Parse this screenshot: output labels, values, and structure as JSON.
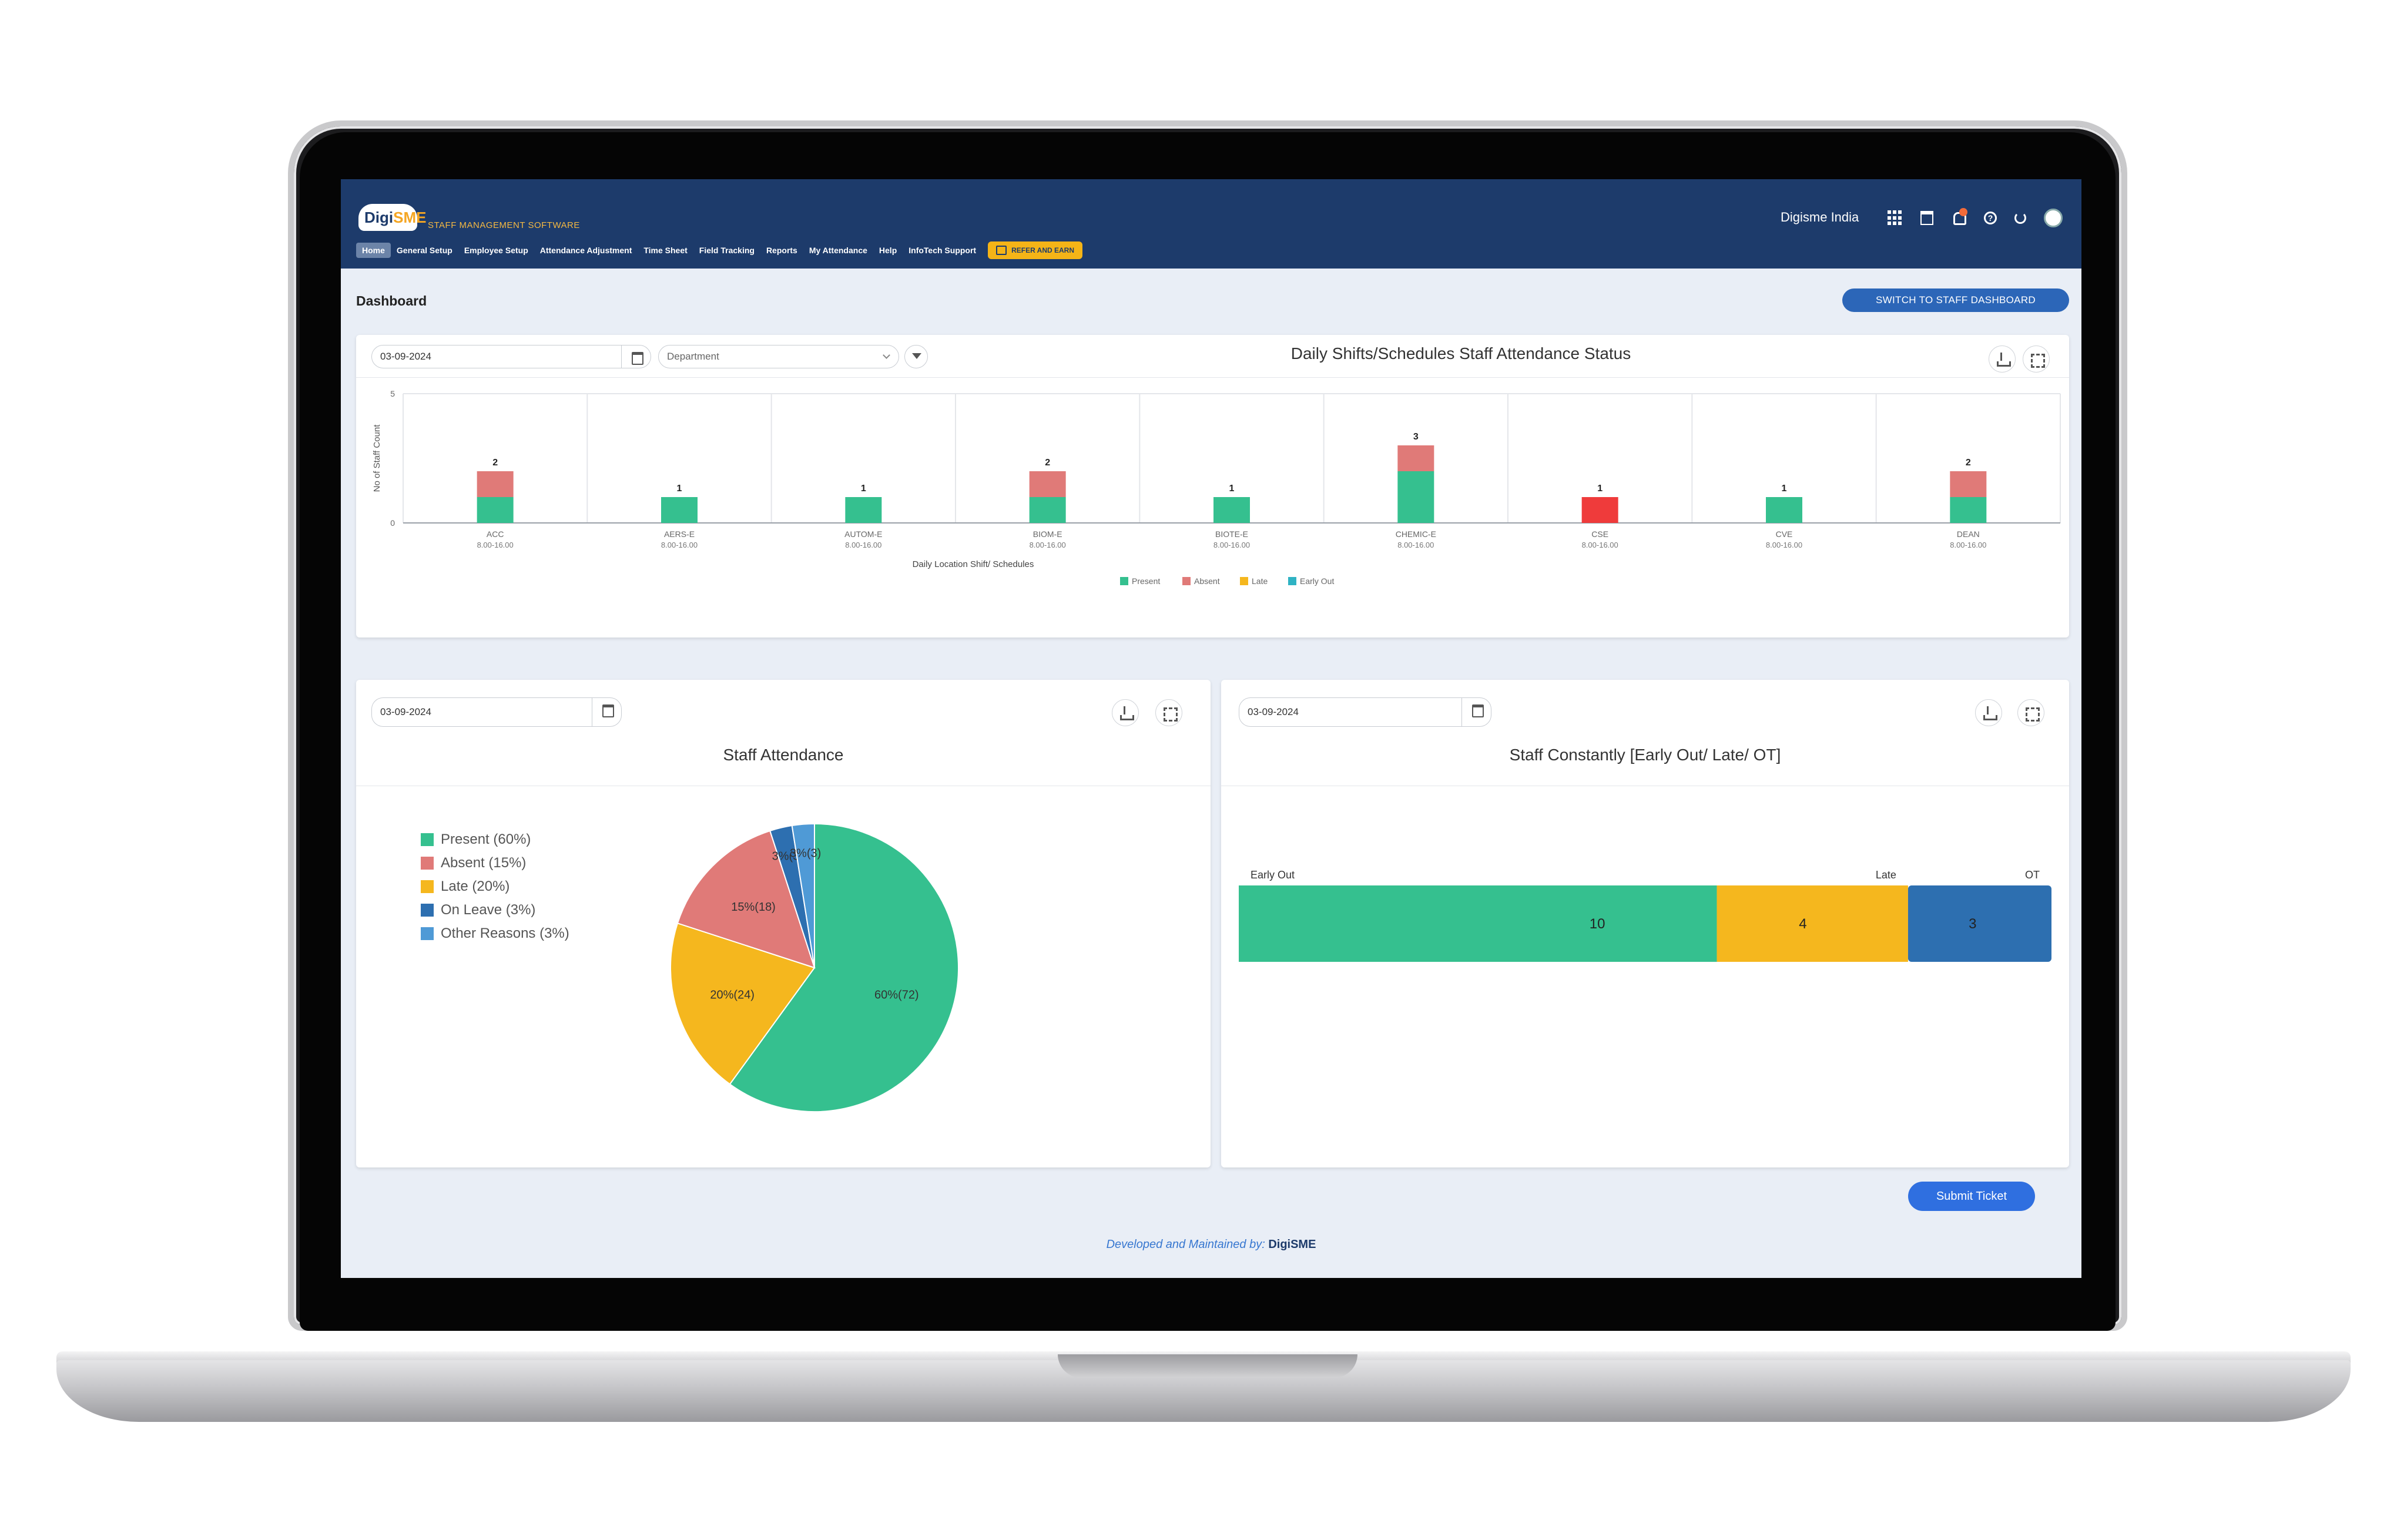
{
  "header": {
    "subtitle": "STAFF MANAGEMENT SOFTWARE",
    "logo": {
      "part1": "Digi",
      "part2": "SME"
    },
    "org_name": "Digisme India",
    "nav": [
      "Home",
      "General Setup",
      "Employee Setup",
      "Attendance Adjustment",
      "Time Sheet",
      "Field Tracking",
      "Reports",
      "My Attendance",
      "Help",
      "InfoTech Support"
    ],
    "refer_label": "REFER AND EARN",
    "help_glyph": "?"
  },
  "dashboard": {
    "title": "Dashboard",
    "switch_label": "SWITCH TO STAFF DASHBOARD"
  },
  "shift_card": {
    "date": "03-09-2024",
    "department_placeholder": "Department",
    "title": "Daily Shifts/Schedules Staff Attendance Status"
  },
  "attendance_card": {
    "date": "03-09-2024",
    "title": "Staff Attendance"
  },
  "constancy_card": {
    "date": "03-09-2024",
    "title": "Staff Constantly [Early Out/ Late/ OT]"
  },
  "submit_label": "Submit Ticket",
  "footer": {
    "text": "Developed and Maintained by:",
    "brand": "DigiSME"
  },
  "colors": {
    "present": "#35c08f",
    "absent": "#e07a78",
    "late": "#f5b71e",
    "early_out": "#2fb3c4",
    "on_leave": "#2d6fb0",
    "other": "#4f9ad6",
    "cse_absent": "#ef3b3b",
    "header": "#1d3b6b"
  },
  "chart_data": [
    {
      "type": "bar",
      "stacked": true,
      "categories": [
        {
          "name": "ACC",
          "time": "8.00-16.00"
        },
        {
          "name": "AERS-E",
          "time": "8.00-16.00"
        },
        {
          "name": "AUTOM-E",
          "time": "8.00-16.00"
        },
        {
          "name": "BIOM-E",
          "time": "8.00-16.00"
        },
        {
          "name": "BIOTE-E",
          "time": "8.00-16.00"
        },
        {
          "name": "CHEMIC-E",
          "time": "8.00-16.00"
        },
        {
          "name": "CSE",
          "time": "8.00-16.00"
        },
        {
          "name": "CVE",
          "time": "8.00-16.00"
        },
        {
          "name": "DEAN",
          "time": "8.00-16.00"
        }
      ],
      "series": [
        {
          "name": "Present",
          "values": [
            1,
            1,
            1,
            1,
            1,
            2,
            0,
            1,
            1
          ]
        },
        {
          "name": "Absent",
          "values": [
            1,
            0,
            0,
            1,
            0,
            1,
            1,
            0,
            1
          ]
        },
        {
          "name": "Late",
          "values": [
            0,
            0,
            0,
            0,
            0,
            0,
            0,
            0,
            0
          ]
        },
        {
          "name": "Early Out",
          "values": [
            0,
            0,
            0,
            0,
            0,
            0,
            0,
            0,
            0
          ]
        }
      ],
      "totals": [
        2,
        1,
        1,
        2,
        1,
        3,
        1,
        1,
        2
      ],
      "xlabel": "Daily Location Shift/ Schedules",
      "ylabel": "No of Staff Count",
      "ylim": [
        0,
        5
      ],
      "yticks": [
        "0",
        "5"
      ],
      "legend": "bottom",
      "grid": true
    },
    {
      "type": "pie",
      "slices": [
        {
          "name": "Present",
          "legend_label": "Present (60%)",
          "value": 72,
          "label": "60%(72)"
        },
        {
          "name": "Absent",
          "legend_label": "Absent (15%)",
          "value": 18,
          "label": "15%(18)"
        },
        {
          "name": "Late",
          "legend_label": "Late (20%)",
          "value": 24,
          "label": "20%(24)"
        },
        {
          "name": "On Leave",
          "legend_label": "On Leave (3%)",
          "value": 3,
          "label": "3%(3)"
        },
        {
          "name": "Other Reasons",
          "legend_label": "Other Reasons (3%)",
          "value": 3,
          "label": "3%(3)"
        }
      ],
      "legend": "left"
    },
    {
      "type": "bar",
      "orientation": "horizontal",
      "stacked": true,
      "segments": [
        {
          "name": "Early Out",
          "value": 10
        },
        {
          "name": "Late",
          "value": 4
        },
        {
          "name": "OT",
          "value": 3
        }
      ]
    }
  ]
}
